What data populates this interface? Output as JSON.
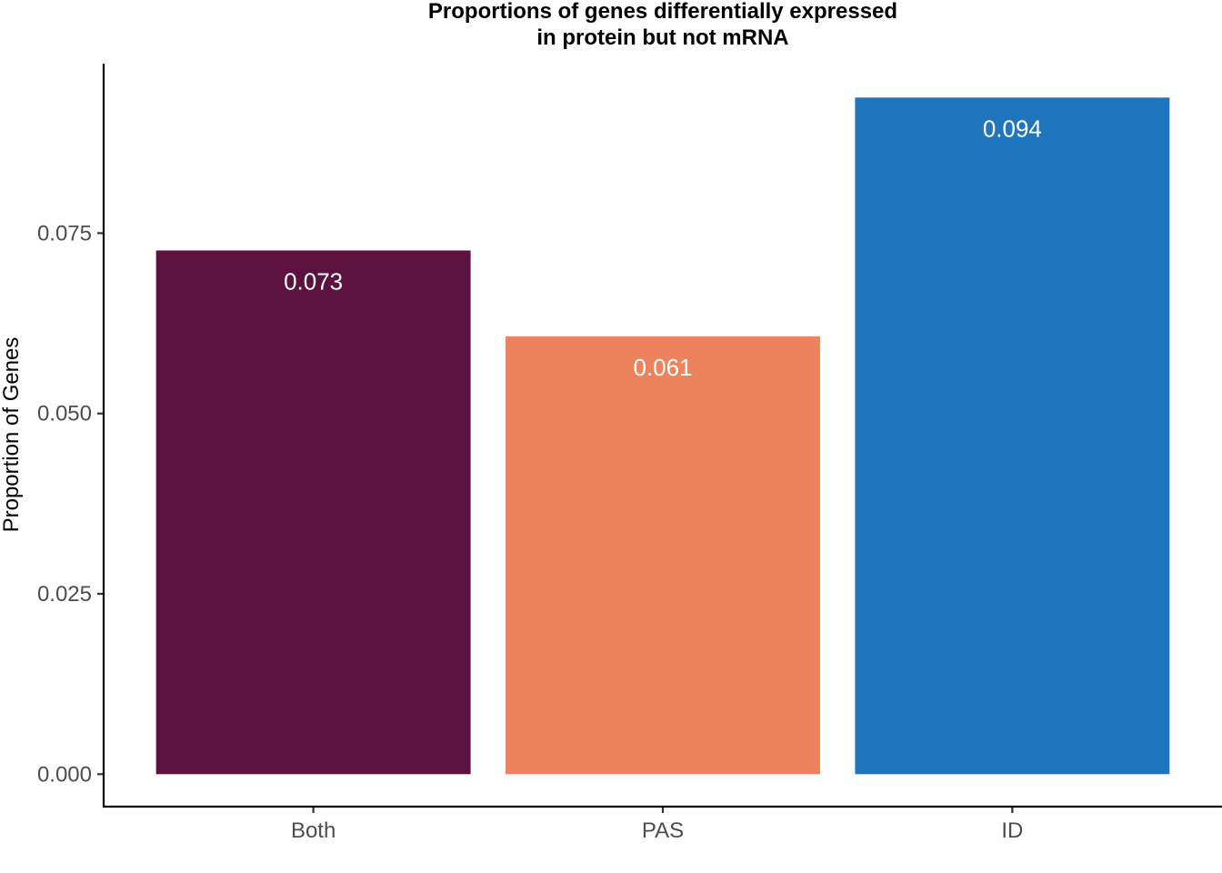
{
  "chart_data": {
    "type": "bar",
    "title_lines": [
      "Proportions of genes differentially expressed",
      "in protein but not mRNA"
    ],
    "xlabel": "",
    "ylabel": "Proportion of Genes",
    "categories": [
      "Both",
      "PAS",
      "ID"
    ],
    "values": [
      0.0726,
      0.0607,
      0.0938
    ],
    "data_labels": [
      "0.073",
      "0.061",
      "0.094"
    ],
    "colors": [
      "#5C113E",
      "#EC835E",
      "#2076BD"
    ],
    "ylim": [
      -0.0045,
      0.0985
    ],
    "yticks": [
      0,
      0.025,
      0.05,
      0.075
    ],
    "ytick_labels": [
      "0.000",
      "0.025",
      "0.050",
      "0.075"
    ],
    "grid": false,
    "legend": "none"
  }
}
